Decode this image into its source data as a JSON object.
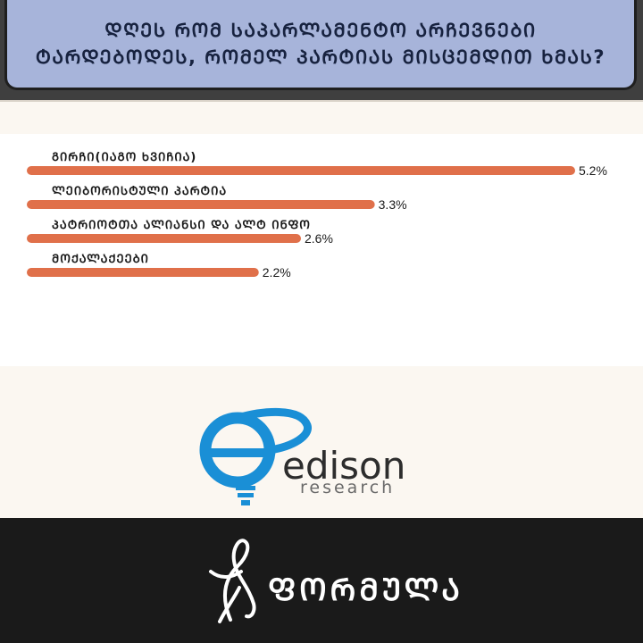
{
  "header": {
    "line1": "ᲓᲦᲔᲡ ᲠᲝᲛ ᲡᲐᲞᲐᲠᲚᲐᲛᲔᲜᲢᲝ ᲐᲠᲩᲔᲕᲜᲔᲑᲘ",
    "line2": "ᲢᲐᲠᲓᲔᲑᲝᲓᲔᲡ, ᲠᲝᲛᲔᲚ ᲞᲐᲠᲢᲘᲐᲡ ᲛᲘᲡᲪᲔᲛᲓᲘᲗ ᲮᲛᲐᲡ?"
  },
  "colors": {
    "header_bg": "#a7b4da",
    "header_text": "#17223f",
    "bar": "#e0704a",
    "logo_blue": "#1a8fd6",
    "footer_bg": "#1a1a1a"
  },
  "chart_data": {
    "type": "bar",
    "orientation": "horizontal",
    "title": "ᲓᲦᲔᲡ ᲠᲝᲛ ᲡᲐᲞᲐᲠᲚᲐᲛᲔᲜᲢᲝ ᲐᲠᲩᲔᲕᲜᲔᲑᲘ ᲢᲐᲠᲓᲔᲑᲝᲓᲔᲡ, ᲠᲝᲛᲔᲚ ᲞᲐᲠᲢᲘᲐᲡ ᲛᲘᲡᲪᲔᲛᲓᲘᲗ ᲮᲛᲐᲡ?",
    "categories": [
      "ᲒᲘᲠᲩᲘ(ᲘᲐᲒᲝ ᲮᲕᲘᲩᲘᲐ)",
      "ᲚᲔᲘᲑᲝᲠᲘᲡᲢᲣᲚᲘ ᲞᲐᲠᲢᲘᲐ",
      "ᲞᲐᲢᲠᲘᲝᲢᲗᲐ ᲐᲚᲘᲐᲜᲡᲘ ᲓᲐ ᲐᲚᲢ ᲘᲜᲤᲝ",
      "ᲛᲝᲥᲐᲚᲐᲥᲔᲔᲑᲘ"
    ],
    "values": [
      5.2,
      3.3,
      2.6,
      2.2
    ],
    "value_labels": [
      "5.2%",
      "3.3%",
      "2.6%",
      "2.2%"
    ],
    "xlim": [
      0,
      5.2
    ],
    "grid": false,
    "legend": "none"
  },
  "logo": {
    "brand": "edison",
    "sub": "research"
  },
  "footer": {
    "brand": "ᲤᲝᲠᲛᲣᲚᲐ"
  }
}
